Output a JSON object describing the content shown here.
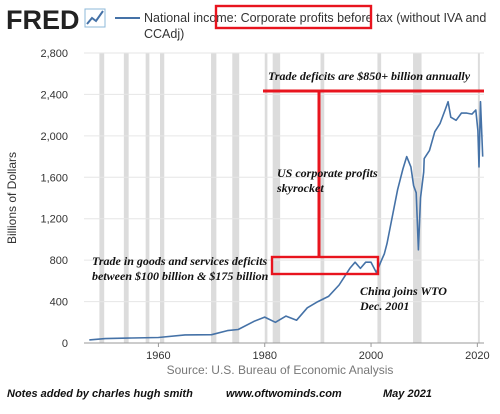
{
  "header": {
    "logo_text": "FRED",
    "legend_prefix": "National income: ",
    "legend_highlight": "Corporate profits before tax",
    "legend_suffix_line1": " (without IVA and",
    "legend_suffix_line2": "CCAdj)"
  },
  "source_text": "Source: U.S. Bureau of Economic Analysis",
  "footer": {
    "credit": "Notes added by charles hugh smith",
    "website": "www.oftwominds.com",
    "date": "May 2021"
  },
  "annotations": {
    "deficit_high": "Trade deficits are $850+ billion annually",
    "profits_line1": "US corporate profits",
    "profits_line2": "skyrocket",
    "deficit_low_line1": "Trade in goods and services deficits",
    "deficit_low_line2": "between $100 billion & $175 billion",
    "china_line1": "China joins WTO",
    "china_line2": "Dec. 2001"
  },
  "colors": {
    "series": "#4572a7",
    "annotation": "#e8141e",
    "recession": "#dcdcdc",
    "grid": "#e6e6e6"
  },
  "chart_data": {
    "type": "line",
    "title": "National income: Corporate profits before tax (without IVA and CCAdj)",
    "ylabel": "Billions of Dollars",
    "xlabel": "",
    "xlim": [
      1946,
      2021.25
    ],
    "ylim": [
      0,
      2800
    ],
    "yticks": [
      0,
      400,
      800,
      1200,
      1600,
      2000,
      2400,
      2800
    ],
    "yticklabels": [
      "0",
      "400",
      "800",
      "1,200",
      "1,600",
      "2,000",
      "2,400",
      "2,800"
    ],
    "xticks": [
      1960,
      1980,
      2000,
      2020
    ],
    "xticklabels": [
      "1960",
      "1980",
      "2000",
      "2020"
    ],
    "grid": true,
    "recessions": [
      [
        1948.9,
        1949.8
      ],
      [
        1953.5,
        1954.4
      ],
      [
        1957.6,
        1958.3
      ],
      [
        1960.3,
        1961.1
      ],
      [
        1969.9,
        1970.9
      ],
      [
        1973.9,
        1975.2
      ],
      [
        1980.0,
        1980.5
      ],
      [
        1981.5,
        1982.9
      ],
      [
        1990.5,
        1991.2
      ],
      [
        2001.2,
        2001.9
      ],
      [
        2007.9,
        2009.5
      ],
      [
        2020.1,
        2020.4
      ]
    ],
    "series": [
      {
        "x": [
          1947,
          1950,
          1955,
          1960,
          1965,
          1970,
          1973,
          1975,
          1978,
          1980,
          1982,
          1984,
          1986,
          1988,
          1990,
          1992,
          1994,
          1995,
          1996,
          1997,
          1998,
          1999,
          2000,
          2001,
          2001.9,
          2002.5,
          2003,
          2004,
          2005,
          2006,
          2006.7,
          2007.5,
          2008,
          2008.5,
          2008.9,
          2009.3,
          2009.9,
          2010,
          2011,
          2012,
          2013,
          2014,
          2014.5,
          2015,
          2016,
          2017,
          2018,
          2019,
          2019.7,
          2020.1,
          2020.3,
          2020.6,
          2021.0
        ],
        "values": [
          30,
          42,
          48,
          53,
          78,
          80,
          120,
          130,
          210,
          250,
          200,
          260,
          220,
          340,
          400,
          450,
          560,
          640,
          720,
          780,
          720,
          780,
          780,
          680,
          790,
          860,
          960,
          1220,
          1480,
          1680,
          1800,
          1700,
          1520,
          1450,
          900,
          1400,
          1650,
          1780,
          1860,
          2040,
          2120,
          2260,
          2330,
          2180,
          2150,
          2220,
          2220,
          2210,
          2250,
          2050,
          1700,
          2330,
          1800
        ]
      }
    ]
  }
}
